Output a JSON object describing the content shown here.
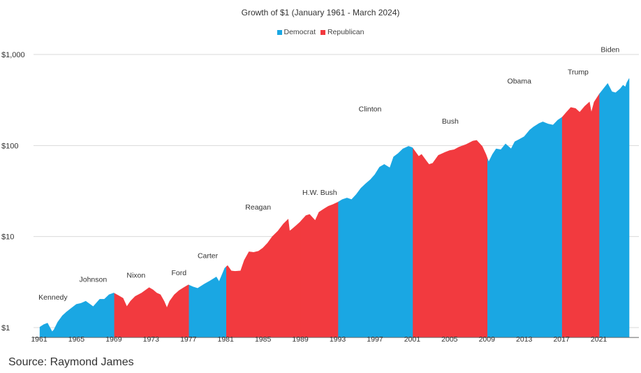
{
  "title": "Growth of $1 (January 1961 - March 2024)",
  "source": "Source: Raymond James",
  "legend": [
    {
      "label": "Democrat",
      "color": "#1aa7e3"
    },
    {
      "label": "Republican",
      "color": "#f23a3f"
    }
  ],
  "chart_data": {
    "type": "area",
    "title": "Growth of $1 (January 1961 - March 2024)",
    "y_scale": "log",
    "ylim": [
      1,
      1000
    ],
    "y_ticks": [
      {
        "value": 1,
        "label": "$1"
      },
      {
        "value": 10,
        "label": "$10"
      },
      {
        "value": 100,
        "label": "$100"
      },
      {
        "value": 1000,
        "label": "$1,000"
      }
    ],
    "xlim": [
      1961,
      2024.25
    ],
    "x_ticks": [
      "1961",
      "1965",
      "1969",
      "1973",
      "1977",
      "1981",
      "1985",
      "1989",
      "1993",
      "1997",
      "2001",
      "2005",
      "2009",
      "2013",
      "2017",
      "2021"
    ],
    "grid": "horizontal",
    "legend_position": "top-center",
    "series": [
      {
        "name": "Democrat",
        "color": "#1aa7e3"
      },
      {
        "name": "Republican",
        "color": "#f23a3f"
      }
    ],
    "presidents": [
      {
        "name": "Kennedy",
        "party": "Democrat",
        "start": 1961.08,
        "end": 1963.9
      },
      {
        "name": "Johnson",
        "party": "Democrat",
        "start": 1963.9,
        "end": 1969.08
      },
      {
        "name": "Nixon",
        "party": "Republican",
        "start": 1969.08,
        "end": 1974.6
      },
      {
        "name": "Ford",
        "party": "Republican",
        "start": 1974.6,
        "end": 1977.08
      },
      {
        "name": "Carter",
        "party": "Democrat",
        "start": 1977.08,
        "end": 1981.08
      },
      {
        "name": "Reagan",
        "party": "Republican",
        "start": 1981.08,
        "end": 1989.08
      },
      {
        "name": "H.W. Bush",
        "party": "Republican",
        "start": 1989.08,
        "end": 1993.08
      },
      {
        "name": "Clinton",
        "party": "Democrat",
        "start": 1993.08,
        "end": 2001.08
      },
      {
        "name": "Bush",
        "party": "Republican",
        "start": 2001.08,
        "end": 2009.08
      },
      {
        "name": "Obama",
        "party": "Democrat",
        "start": 2009.08,
        "end": 2017.08
      },
      {
        "name": "Trump",
        "party": "Republican",
        "start": 2017.08,
        "end": 2021.08
      },
      {
        "name": "Biden",
        "party": "Democrat",
        "start": 2021.08,
        "end": 2024.25
      }
    ],
    "points": [
      [
        1961.0,
        1.0
      ],
      [
        1961.5,
        1.08
      ],
      [
        1961.9,
        1.12
      ],
      [
        1962.4,
        0.9
      ],
      [
        1962.6,
        0.95
      ],
      [
        1963.0,
        1.15
      ],
      [
        1963.5,
        1.35
      ],
      [
        1964.0,
        1.5
      ],
      [
        1964.5,
        1.65
      ],
      [
        1965.0,
        1.8
      ],
      [
        1965.5,
        1.85
      ],
      [
        1966.0,
        1.95
      ],
      [
        1966.8,
        1.7
      ],
      [
        1967.5,
        2.05
      ],
      [
        1968.0,
        2.05
      ],
      [
        1968.5,
        2.3
      ],
      [
        1969.0,
        2.4
      ],
      [
        1969.5,
        2.25
      ],
      [
        1970.0,
        2.1
      ],
      [
        1970.4,
        1.7
      ],
      [
        1970.8,
        1.95
      ],
      [
        1971.3,
        2.2
      ],
      [
        1972.0,
        2.4
      ],
      [
        1972.8,
        2.75
      ],
      [
        1973.2,
        2.6
      ],
      [
        1973.6,
        2.4
      ],
      [
        1974.0,
        2.3
      ],
      [
        1974.4,
        1.95
      ],
      [
        1974.7,
        1.65
      ],
      [
        1975.0,
        1.95
      ],
      [
        1975.5,
        2.3
      ],
      [
        1976.0,
        2.55
      ],
      [
        1976.5,
        2.75
      ],
      [
        1977.0,
        2.95
      ],
      [
        1977.5,
        2.8
      ],
      [
        1978.0,
        2.7
      ],
      [
        1978.7,
        3.0
      ],
      [
        1979.3,
        3.25
      ],
      [
        1980.0,
        3.6
      ],
      [
        1980.3,
        3.2
      ],
      [
        1980.9,
        4.5
      ],
      [
        1981.2,
        4.8
      ],
      [
        1981.6,
        4.2
      ],
      [
        1982.0,
        4.15
      ],
      [
        1982.6,
        4.2
      ],
      [
        1983.0,
        5.5
      ],
      [
        1983.5,
        6.8
      ],
      [
        1984.0,
        6.7
      ],
      [
        1984.5,
        6.9
      ],
      [
        1985.0,
        7.5
      ],
      [
        1985.5,
        8.5
      ],
      [
        1986.0,
        10.0
      ],
      [
        1986.6,
        11.5
      ],
      [
        1987.2,
        13.8
      ],
      [
        1987.7,
        15.5
      ],
      [
        1987.85,
        11.5
      ],
      [
        1988.0,
        11.8
      ],
      [
        1988.6,
        13.3
      ],
      [
        1989.0,
        14.5
      ],
      [
        1989.6,
        17.0
      ],
      [
        1990.0,
        17.5
      ],
      [
        1990.6,
        15.0
      ],
      [
        1991.0,
        18.5
      ],
      [
        1991.5,
        20.0
      ],
      [
        1992.0,
        21.5
      ],
      [
        1992.5,
        22.5
      ],
      [
        1993.08,
        24.0
      ],
      [
        1993.5,
        25.5
      ],
      [
        1994.0,
        26.5
      ],
      [
        1994.5,
        25.5
      ],
      [
        1995.0,
        29.0
      ],
      [
        1995.5,
        34.0
      ],
      [
        1996.0,
        38.0
      ],
      [
        1996.5,
        42.0
      ],
      [
        1997.0,
        48.0
      ],
      [
        1997.5,
        58.0
      ],
      [
        1998.0,
        62.0
      ],
      [
        1998.6,
        57.0
      ],
      [
        1999.0,
        75.0
      ],
      [
        1999.5,
        82.0
      ],
      [
        2000.0,
        92.0
      ],
      [
        2000.6,
        98.0
      ],
      [
        2001.0,
        95.0
      ],
      [
        2001.7,
        76.0
      ],
      [
        2002.0,
        80.0
      ],
      [
        2002.5,
        68.0
      ],
      [
        2002.8,
        62.0
      ],
      [
        2003.2,
        64.0
      ],
      [
        2003.8,
        78.0
      ],
      [
        2004.5,
        84.0
      ],
      [
        2005.0,
        88.0
      ],
      [
        2005.5,
        90.0
      ],
      [
        2006.0,
        96.0
      ],
      [
        2006.8,
        103.0
      ],
      [
        2007.5,
        112.0
      ],
      [
        2007.9,
        114.0
      ],
      [
        2008.5,
        98.0
      ],
      [
        2008.9,
        80.0
      ],
      [
        2009.2,
        66.0
      ],
      [
        2009.6,
        80.0
      ],
      [
        2010.0,
        92.0
      ],
      [
        2010.5,
        90.0
      ],
      [
        2011.0,
        104.0
      ],
      [
        2011.6,
        92.0
      ],
      [
        2012.0,
        110.0
      ],
      [
        2012.5,
        117.0
      ],
      [
        2013.0,
        125.0
      ],
      [
        2013.6,
        148.0
      ],
      [
        2014.0,
        160.0
      ],
      [
        2014.6,
        175.0
      ],
      [
        2015.0,
        182.0
      ],
      [
        2015.6,
        172.0
      ],
      [
        2016.1,
        168.0
      ],
      [
        2016.6,
        190.0
      ],
      [
        2017.08,
        205.0
      ],
      [
        2017.5,
        230.0
      ],
      [
        2018.0,
        262.0
      ],
      [
        2018.5,
        255.0
      ],
      [
        2018.95,
        232.0
      ],
      [
        2019.5,
        270.0
      ],
      [
        2020.0,
        300.0
      ],
      [
        2020.2,
        230.0
      ],
      [
        2020.5,
        300.0
      ],
      [
        2021.08,
        370.0
      ],
      [
        2021.5,
        420.0
      ],
      [
        2021.95,
        480.0
      ],
      [
        2022.4,
        390.0
      ],
      [
        2022.8,
        380.0
      ],
      [
        2023.3,
        420.0
      ],
      [
        2023.6,
        460.0
      ],
      [
        2023.85,
        440.0
      ],
      [
        2024.0,
        490.0
      ],
      [
        2024.25,
        545.0
      ]
    ]
  }
}
